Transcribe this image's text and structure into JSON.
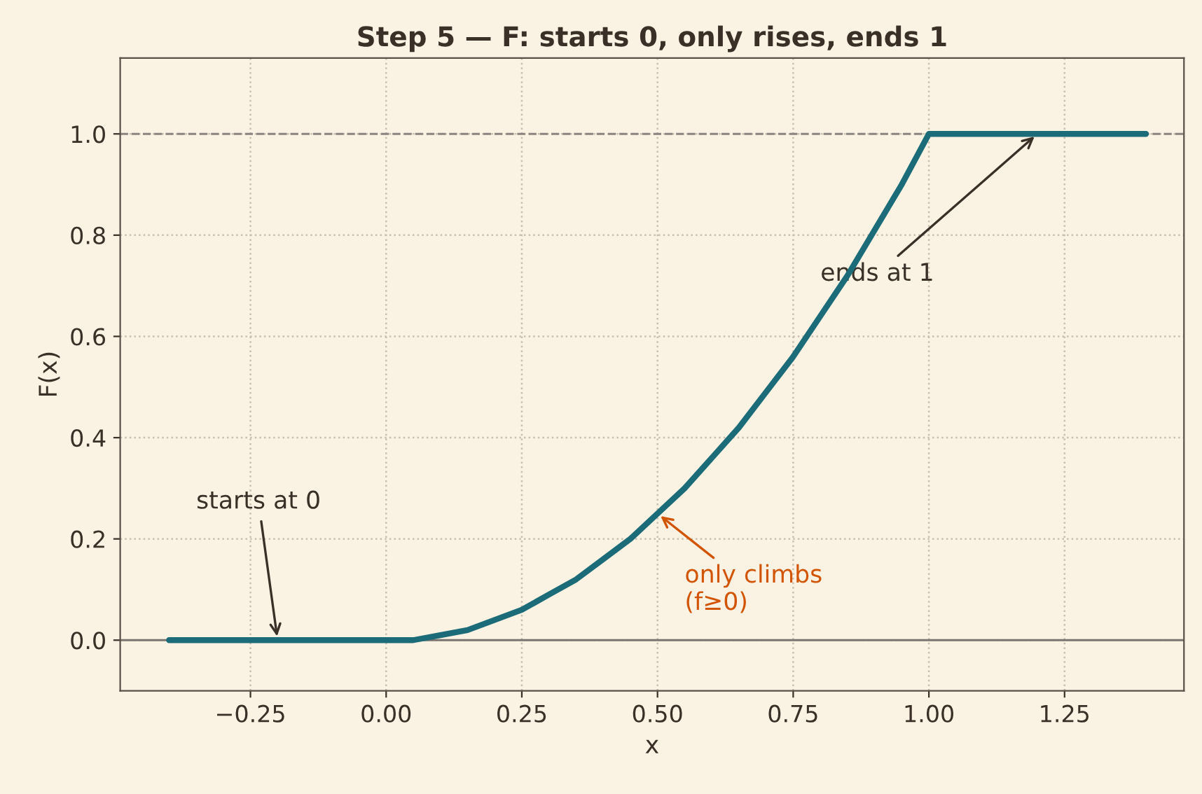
{
  "chart_data": {
    "type": "line",
    "title": "Step 5 — F: starts 0, only rises, ends 1",
    "xlabel": "x",
    "ylabel": "F(x)",
    "x": [
      -0.4,
      -0.2,
      0.0,
      0.05,
      0.1,
      0.15,
      0.2,
      0.25,
      0.3,
      0.35,
      0.4,
      0.45,
      0.5,
      0.55,
      0.6,
      0.65,
      0.7,
      0.75,
      0.8,
      0.85,
      0.9,
      0.95,
      1.0,
      1.2,
      1.4
    ],
    "series": [
      {
        "color": "#1b6b78",
        "values": [
          0.0,
          0.0,
          0.0,
          0.0,
          0.01,
          0.02,
          0.04,
          0.06,
          0.09,
          0.12,
          0.16,
          0.2,
          0.25,
          0.3,
          0.36,
          0.42,
          0.49,
          0.56,
          0.64,
          0.72,
          0.81,
          0.9,
          1.0,
          1.0,
          1.0
        ]
      }
    ],
    "xlim": [
      -0.49,
      1.47
    ],
    "ylim": [
      -0.1,
      1.15
    ],
    "xticks": [
      {
        "value": -0.25,
        "label": "−0.25"
      },
      {
        "value": 0,
        "label": "0.00"
      },
      {
        "value": 0.25,
        "label": "0.25"
      },
      {
        "value": 0.5,
        "label": "0.50"
      },
      {
        "value": 0.75,
        "label": "0.75"
      },
      {
        "value": 1.0,
        "label": "1.00"
      },
      {
        "value": 1.25,
        "label": "1.25"
      }
    ],
    "yticks": [
      {
        "value": 0,
        "label": "0.0"
      },
      {
        "value": 0.2,
        "label": "0.2"
      },
      {
        "value": 0.4,
        "label": "0.4"
      },
      {
        "value": 0.6,
        "label": "0.6"
      },
      {
        "value": 0.8,
        "label": "0.8"
      },
      {
        "value": 1.0,
        "label": "1.0"
      }
    ],
    "ref_lines": [
      {
        "axis": "y",
        "value": 0,
        "color": "#7a7570",
        "line_style": "solid"
      },
      {
        "axis": "y",
        "value": 1,
        "color": "#8a8580",
        "line_style": "dashed"
      }
    ],
    "annotations": [
      {
        "text": "starts at 0",
        "x": -0.2,
        "y": 0.0
      },
      {
        "text": "only climbs\n(f≥0)",
        "x": 0.5,
        "y": 0.25
      },
      {
        "text": "ends at 1",
        "x": 1.2,
        "y": 1.0
      }
    ],
    "grid": true,
    "line_style": "solid",
    "marker": "none"
  }
}
